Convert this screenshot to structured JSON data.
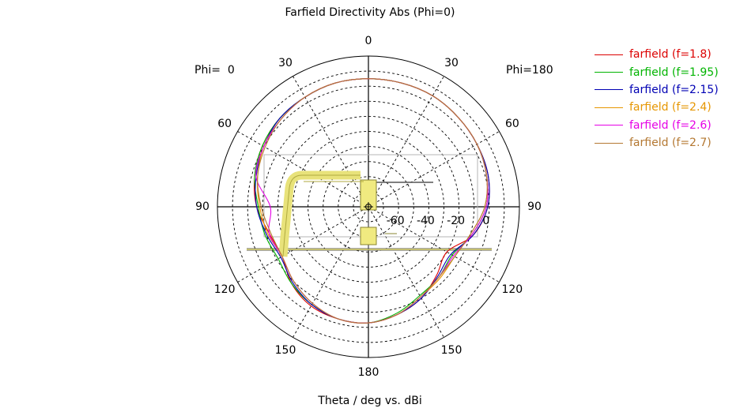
{
  "chart_data": {
    "type": "polar-line",
    "title": "Farfield Directivity Abs (Phi=0)",
    "xlabel": "Theta / deg vs. dBi",
    "left_label": "Phi=  0",
    "right_label": "Phi=180",
    "angle_ticks": [
      "0",
      "30",
      "60",
      "90",
      "120",
      "150",
      "180",
      "150",
      "120",
      "90",
      "60",
      "30"
    ],
    "radial_ticks": [
      "-60",
      "-40",
      "-20",
      "0"
    ],
    "r_range": [
      -80,
      20
    ],
    "grid": true,
    "legend_position": "top-right",
    "theta_deg": [
      0,
      15,
      30,
      45,
      60,
      75,
      90,
      105,
      120,
      135,
      150,
      165,
      180,
      195,
      210,
      225,
      240,
      255,
      270,
      285,
      300,
      315,
      330,
      345
    ],
    "series": [
      {
        "name": "farfield (f=1.8)",
        "color": "#dc0000",
        "r_dbi": [
          5,
          5,
          4,
          3,
          1,
          -2,
          -6,
          -12,
          -14,
          -8,
          -4,
          -3,
          -3,
          -6,
          -10,
          -16,
          -20,
          -8,
          -1,
          2,
          3,
          4,
          5,
          5
        ]
      },
      {
        "name": "farfield (f=1.95)",
        "color": "#00b400",
        "r_dbi": [
          5,
          5,
          4,
          3,
          1,
          -2,
          -7,
          -9,
          -11,
          -8,
          -5,
          -3,
          -3,
          -7,
          -12,
          -14,
          -16,
          -9,
          -2,
          1,
          3,
          4,
          5,
          5
        ]
      },
      {
        "name": "farfield (f=2.15)",
        "color": "#0000b4",
        "r_dbi": [
          5,
          5,
          4,
          3,
          0,
          -3,
          -6,
          -10,
          -13,
          -9,
          -5,
          -3,
          -3,
          -6,
          -10,
          -15,
          -17,
          -8,
          -1,
          2,
          3,
          4,
          5,
          5
        ]
      },
      {
        "name": "farfield (f=2.4)",
        "color": "#e69600",
        "r_dbi": [
          5,
          5,
          4,
          2,
          0,
          -4,
          -8,
          -11,
          -14,
          -10,
          -6,
          -3,
          -3,
          -6,
          -11,
          -13,
          -14,
          -10,
          -3,
          1,
          3,
          4,
          5,
          5
        ]
      },
      {
        "name": "farfield (f=2.6)",
        "color": "#e600e6",
        "r_dbi": [
          5,
          5,
          4,
          2,
          0,
          -3,
          -15,
          -12,
          -14,
          -10,
          -6,
          -3,
          -3,
          -6,
          -11,
          -14,
          -15,
          -9,
          -2,
          1,
          3,
          4,
          5,
          5
        ]
      },
      {
        "name": "farfield (f=2.7)",
        "color": "#b47832",
        "r_dbi": [
          5,
          5,
          4,
          2,
          -1,
          -4,
          -9,
          -13,
          -14,
          -10,
          -6,
          -3,
          -3,
          -6,
          -11,
          -14,
          -14,
          -10,
          -3,
          1,
          3,
          4,
          5,
          5
        ]
      }
    ]
  }
}
